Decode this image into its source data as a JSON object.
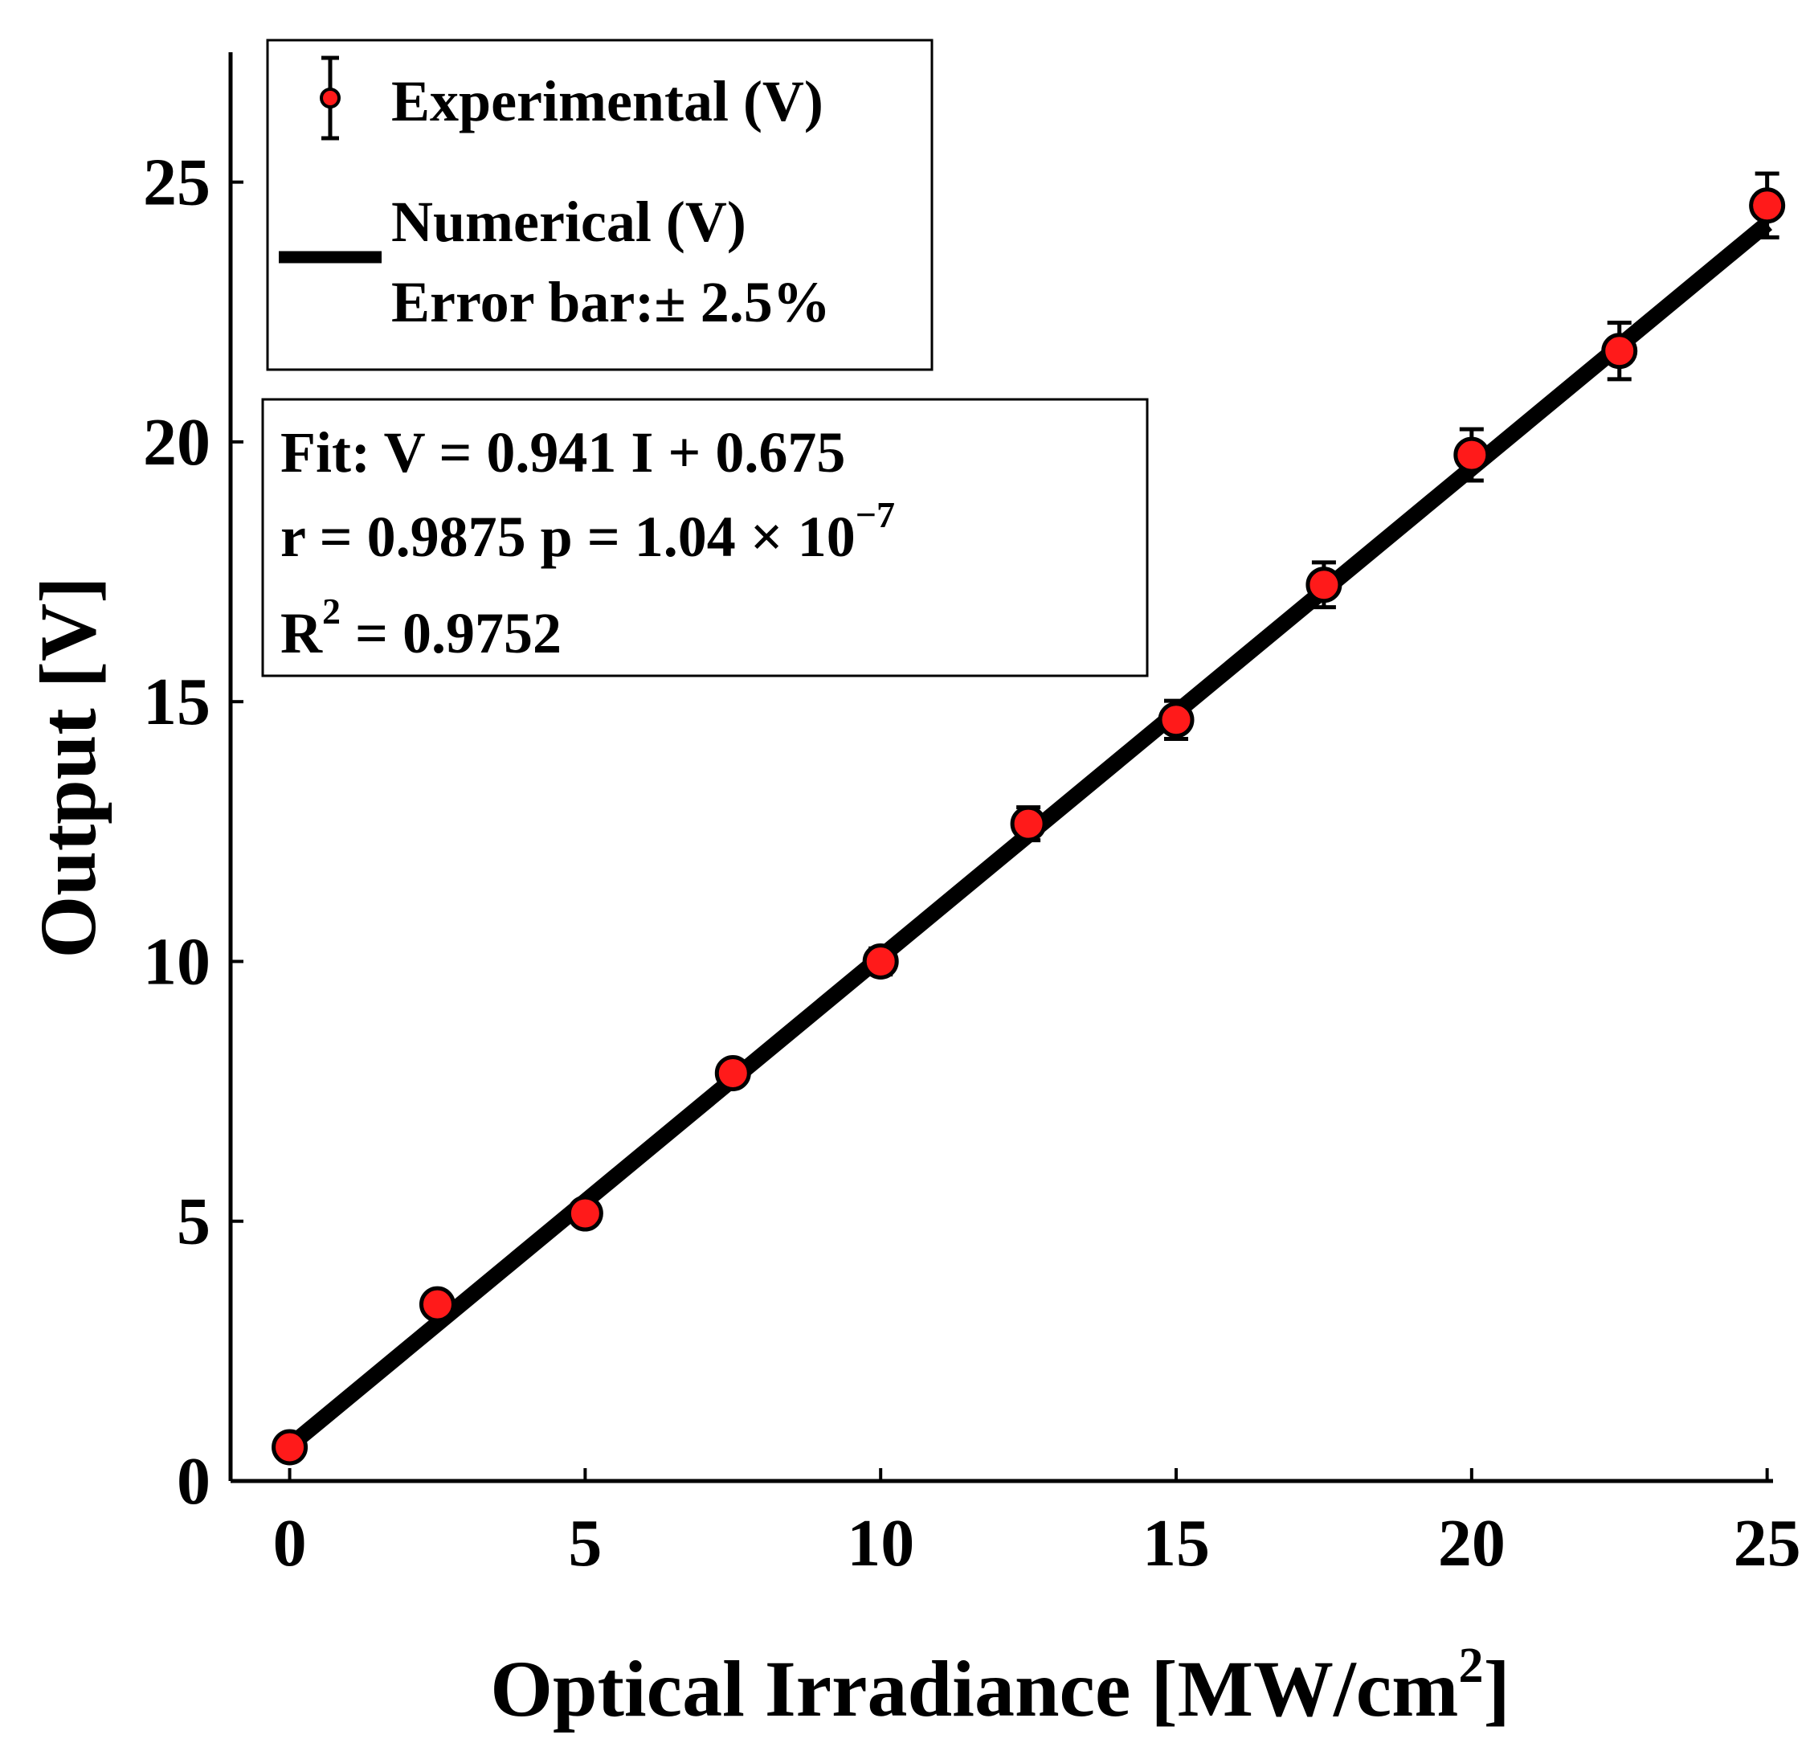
{
  "chart_data": {
    "type": "scatter",
    "title": "",
    "xlabel": "Optical Irradiance [MW/cm",
    "xlabel_sup": "2",
    "xlabel_end": "]",
    "ylabel": "Output [V]",
    "xlim": [
      -1,
      25.1
    ],
    "ylim": [
      0,
      27.5
    ],
    "xticks": [
      0,
      5,
      10,
      15,
      20,
      25
    ],
    "yticks": [
      0,
      5,
      10,
      15,
      20,
      25
    ],
    "grid": false,
    "legend_position": "top-left",
    "series": [
      {
        "name": "Experimental (V)",
        "kind": "scatter-errorbar",
        "color": "#ff1a1a",
        "edge_color": "#000000",
        "x": [
          0,
          2.5,
          5,
          7.5,
          10,
          12.5,
          15,
          17.5,
          20,
          22.5,
          25
        ],
        "y": [
          0.65,
          3.4,
          5.15,
          7.85,
          10.0,
          12.65,
          14.65,
          17.25,
          19.75,
          21.75,
          24.55
        ],
        "error_percent": 2.5
      },
      {
        "name": "Numerical (V)",
        "kind": "line",
        "color": "#000000",
        "x": [
          0,
          25
        ],
        "y": [
          0.675,
          24.2
        ]
      }
    ],
    "legend": {
      "entries": [
        "Experimental (V)",
        "Numerical (V)"
      ],
      "note": "Error bar:± 2.5%"
    },
    "annotation": {
      "fit_line": "Fit:  V = 0.941 I + 0.675",
      "r_text": "r = 0.9875   p = 1.04 × 10",
      "p_exponent": "−7",
      "r2_label": "R",
      "r2_sup": "2",
      "r2_value": " = 0.9752"
    }
  }
}
